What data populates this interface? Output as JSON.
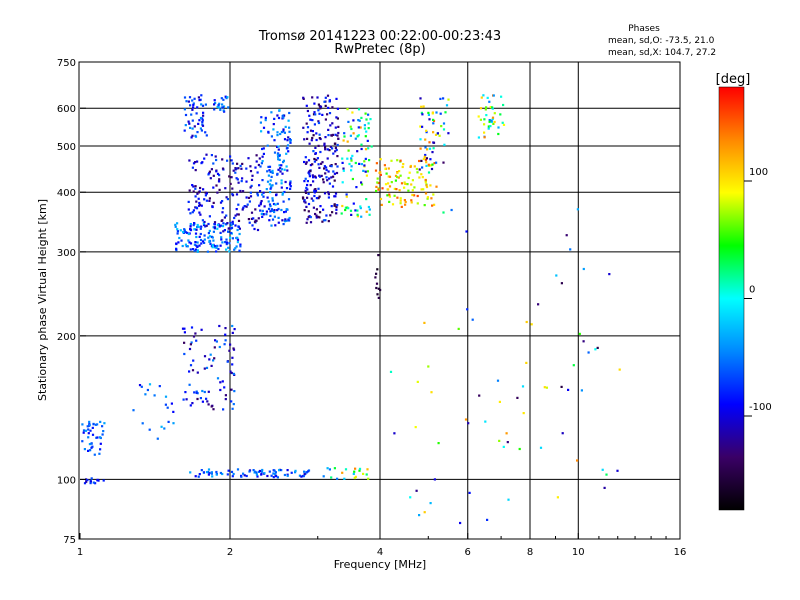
{
  "chart_data": {
    "type": "scatter",
    "title": "Tromsø 20141223 00:22:00-00:23:43",
    "subtitle": "RwPretec (8p)",
    "xlabel": "Frequency [MHz]",
    "ylabel": "Stationary phase Virtual Height [km]",
    "x_scale": "log",
    "y_scale": "log",
    "xlim": [
      1,
      16
    ],
    "ylim": [
      75,
      750
    ],
    "x_ticks": [
      1,
      2,
      4,
      6,
      8,
      10,
      16
    ],
    "x_grid": [
      2,
      4,
      6,
      8,
      10
    ],
    "y_ticks": [
      75,
      100,
      200,
      300,
      400,
      500,
      600,
      750
    ],
    "y_grid": [
      100,
      200,
      300,
      400,
      500,
      600
    ],
    "legend": {
      "heading": "Phases",
      "line1": "mean, sd,O: -73.5, 21.0",
      "line2": "mean, sd,X: 104.7, 27.2"
    },
    "colorbar": {
      "label": "[deg]",
      "min": -180,
      "max": 180,
      "ticks": [
        100,
        0,
        -100
      ],
      "colors": [
        "#000000",
        "#3a0066",
        "#0000ff",
        "#0088ff",
        "#00ffff",
        "#00ff00",
        "#ffff00",
        "#ff8800",
        "#ff0000"
      ]
    },
    "clusters": [
      {
        "f_min": 1.0,
        "f_max": 1.12,
        "h_min": 112,
        "h_max": 133,
        "n": 45,
        "ph_min": -95,
        "ph_max": -30
      },
      {
        "f_min": 1.0,
        "f_max": 1.15,
        "h_min": 98,
        "h_max": 101,
        "n": 15,
        "ph_min": -115,
        "ph_max": -60
      },
      {
        "f_min": 1.62,
        "f_max": 1.8,
        "h_min": 520,
        "h_max": 640,
        "n": 50,
        "ph_min": -120,
        "ph_max": -40
      },
      {
        "f_min": 1.85,
        "f_max": 2.0,
        "h_min": 590,
        "h_max": 640,
        "n": 22,
        "ph_min": -100,
        "ph_max": -20
      },
      {
        "f_min": 1.55,
        "f_max": 2.1,
        "h_min": 300,
        "h_max": 345,
        "n": 140,
        "ph_min": -95,
        "ph_max": -15
      },
      {
        "f_min": 1.65,
        "f_max": 2.3,
        "h_min": 330,
        "h_max": 480,
        "n": 190,
        "ph_min": -140,
        "ph_max": -60
      },
      {
        "f_min": 2.3,
        "f_max": 2.65,
        "h_min": 340,
        "h_max": 600,
        "n": 170,
        "ph_min": -110,
        "ph_max": -25
      },
      {
        "f_min": 2.8,
        "f_max": 3.3,
        "h_min": 345,
        "h_max": 640,
        "n": 220,
        "ph_min": -150,
        "ph_max": -60
      },
      {
        "f_min": 3.35,
        "f_max": 3.85,
        "h_min": 355,
        "h_max": 600,
        "n": 90,
        "ph_min": -120,
        "ph_max": 140
      },
      {
        "f_min": 3.9,
        "f_max": 5.2,
        "h_min": 375,
        "h_max": 470,
        "n": 110,
        "ph_min": 50,
        "ph_max": 160
      },
      {
        "f_min": 4.8,
        "f_max": 5.5,
        "h_min": 440,
        "h_max": 640,
        "n": 60,
        "ph_min": -150,
        "ph_max": 150
      },
      {
        "f_min": 6.3,
        "f_max": 7.1,
        "h_min": 520,
        "h_max": 640,
        "n": 40,
        "ph_min": -60,
        "ph_max": 140
      },
      {
        "f_min": 1.6,
        "f_max": 2.05,
        "h_min": 140,
        "h_max": 210,
        "n": 85,
        "ph_min": -140,
        "ph_max": -40
      },
      {
        "f_min": 1.25,
        "f_max": 1.55,
        "h_min": 118,
        "h_max": 160,
        "n": 20,
        "ph_min": -100,
        "ph_max": -20
      },
      {
        "f_min": 1.65,
        "f_max": 2.9,
        "h_min": 101,
        "h_max": 105,
        "n": 80,
        "ph_min": -110,
        "ph_max": -30
      },
      {
        "f_min": 3.0,
        "f_max": 3.8,
        "h_min": 100,
        "h_max": 106,
        "n": 20,
        "ph_min": -60,
        "ph_max": 140
      },
      {
        "f_min": 3.9,
        "f_max": 4.05,
        "h_min": 240,
        "h_max": 340,
        "n": 10,
        "ph_min": -170,
        "ph_max": -140
      },
      {
        "f_min": 4.0,
        "f_max": 12.5,
        "h_min": 80,
        "h_max": 380,
        "n": 70,
        "ph_min": -150,
        "ph_max": 150
      }
    ]
  }
}
